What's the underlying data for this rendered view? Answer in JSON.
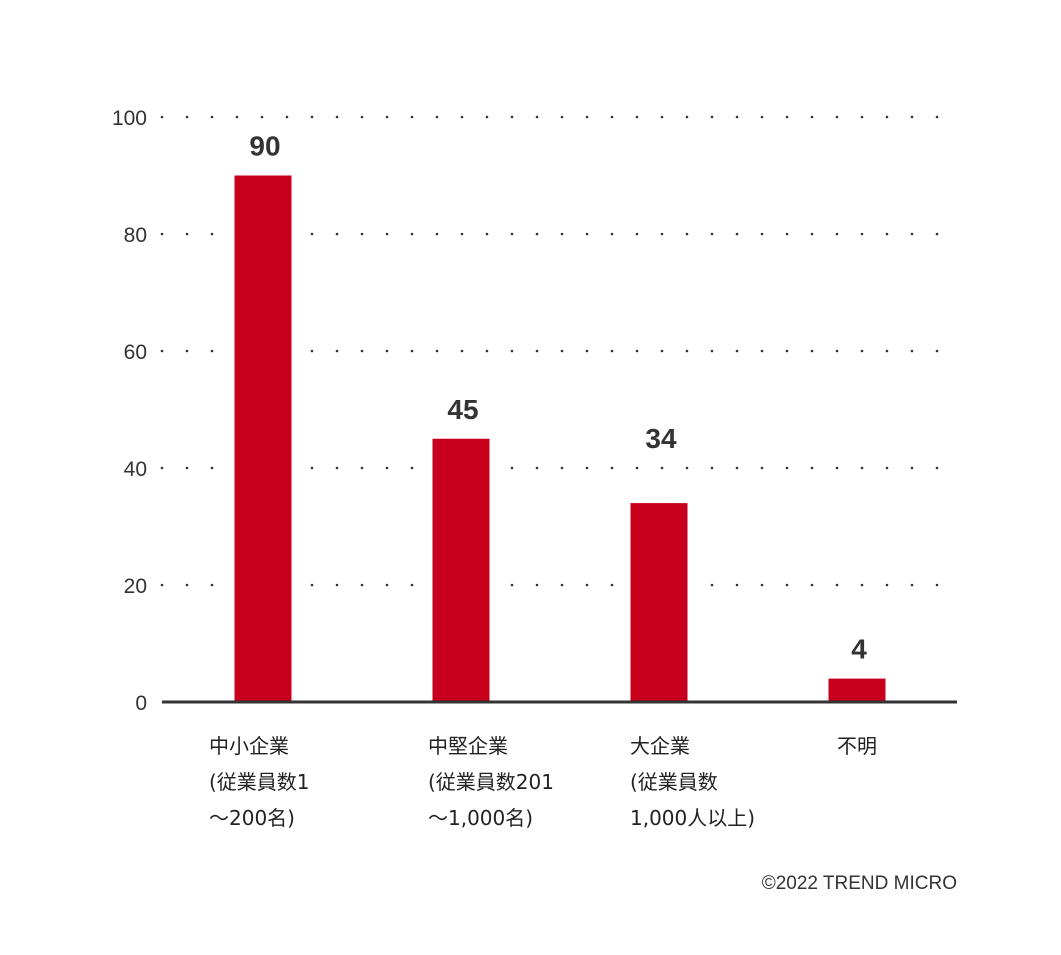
{
  "chart_data": {
    "type": "bar",
    "categories": [
      [
        "中小企業",
        "(従業員数1",
        "～200名)"
      ],
      [
        "中堅企業",
        "(従業員数201",
        "～1,000名)"
      ],
      [
        "大企業",
        "(従業員数",
        "1,000人以上)"
      ],
      [
        "不明"
      ]
    ],
    "values": [
      90,
      45,
      34,
      4
    ],
    "ylim": [
      0,
      100
    ],
    "yticks": [
      0,
      20,
      40,
      60,
      80,
      100
    ],
    "grid": "dotted-horizontal",
    "bar_color": "#c8001e",
    "axis_color": "#333333"
  },
  "footer": {
    "copyright": "©2022 TREND MICRO"
  }
}
